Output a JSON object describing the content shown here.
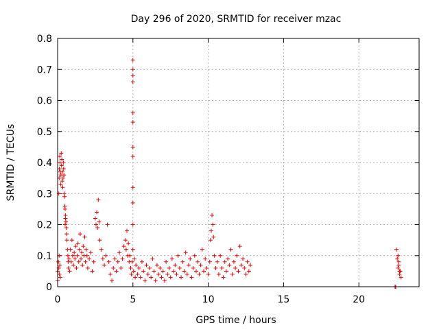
{
  "chart_data": {
    "type": "scatter",
    "title": "Day 296 of 2020, SRMTID for receiver mzac",
    "xlabel": "GPS time / hours",
    "ylabel": "SRMTID / TECUs",
    "xlim": [
      0,
      24
    ],
    "ylim": [
      0,
      0.8
    ],
    "xticks": [
      0,
      5,
      10,
      15,
      20
    ],
    "xtick_labels": [
      "0",
      "5",
      "10",
      "15",
      "20"
    ],
    "yticks": [
      0,
      0.1,
      0.2,
      0.3,
      0.4,
      0.5,
      0.6,
      0.7,
      0.8
    ],
    "ytick_labels": [
      "0",
      "0.1",
      "0.2",
      "0.3",
      "0.4",
      "0.5",
      "0.6",
      "0.7",
      "0.8"
    ],
    "grid": true,
    "marker": "+",
    "color": "#e60000",
    "series": [
      {
        "x": [
          0.0,
          0.02,
          0.05,
          0.08,
          0.1,
          0.12,
          0.15,
          0.18,
          0.08,
          0.1,
          0.12,
          0.14,
          0.16,
          0.18,
          0.2,
          0.22,
          0.24,
          0.26,
          0.28,
          0.3,
          0.32,
          0.34,
          0.36,
          0.38,
          0.4,
          0.42,
          0.44,
          0.46,
          0.48,
          0.5,
          0.52,
          0.5,
          0.52,
          0.55,
          0.58,
          0.6,
          0.62,
          0.65,
          0.68,
          0.7,
          0.72,
          0.75,
          0.8,
          0.85,
          0.9,
          0.95,
          1.0,
          1.05,
          1.1,
          1.15,
          1.2,
          1.25,
          1.3,
          1.35,
          1.4,
          1.45,
          1.5,
          1.55,
          1.6,
          1.65,
          1.7,
          1.75,
          1.8,
          1.85,
          1.9,
          1.95,
          2.0,
          2.1,
          2.2,
          2.3,
          2.4,
          2.5,
          2.55,
          2.6,
          2.65,
          2.7,
          2.75,
          2.8,
          2.9,
          3.0,
          3.1,
          3.2,
          3.3,
          3.4,
          3.5,
          3.6,
          3.7,
          3.8,
          3.9,
          4.0,
          4.1,
          4.2,
          4.3,
          4.4,
          4.5,
          4.55,
          4.6,
          4.65,
          4.7,
          4.75,
          4.8,
          4.85,
          4.9,
          4.95,
          5.0,
          5.0,
          5.0,
          5.0,
          5.0,
          5.0,
          5.0,
          5.0,
          5.0,
          5.0,
          5.0,
          5.0,
          5.05,
          5.1,
          5.15,
          5.2,
          5.3,
          5.4,
          5.5,
          5.6,
          5.7,
          5.8,
          5.9,
          6.0,
          6.1,
          6.2,
          6.3,
          6.4,
          6.5,
          6.6,
          6.7,
          6.8,
          6.9,
          7.0,
          7.1,
          7.2,
          7.3,
          7.4,
          7.5,
          7.6,
          7.7,
          7.8,
          7.9,
          8.0,
          8.1,
          8.2,
          8.3,
          8.4,
          8.5,
          8.6,
          8.7,
          8.8,
          8.9,
          9.0,
          9.1,
          9.2,
          9.3,
          9.4,
          9.5,
          9.6,
          9.7,
          9.8,
          9.9,
          10.0,
          10.1,
          10.15,
          10.2,
          10.25,
          10.3,
          10.35,
          10.4,
          10.5,
          10.6,
          10.7,
          10.8,
          10.9,
          11.0,
          11.1,
          11.2,
          11.3,
          11.4,
          11.5,
          11.6,
          11.7,
          11.8,
          11.9,
          12.0,
          12.1,
          12.2,
          12.3,
          12.4,
          12.5,
          12.6,
          12.7,
          12.8,
          22.4,
          22.45,
          22.5,
          22.55,
          22.6,
          22.65,
          22.7,
          22.75,
          22.8,
          22.6,
          22.65,
          22.7
        ],
        "y": [
          0.02,
          0.05,
          0.08,
          0.06,
          0.1,
          0.04,
          0.07,
          0.03,
          0.3,
          0.35,
          0.38,
          0.42,
          0.4,
          0.37,
          0.33,
          0.36,
          0.43,
          0.39,
          0.41,
          0.34,
          0.37,
          0.32,
          0.35,
          0.4,
          0.38,
          0.36,
          0.3,
          0.29,
          0.26,
          0.25,
          0.22,
          0.2,
          0.23,
          0.21,
          0.19,
          0.17,
          0.15,
          0.12,
          0.1,
          0.08,
          0.06,
          0.09,
          0.05,
          0.12,
          0.08,
          0.15,
          0.1,
          0.07,
          0.11,
          0.09,
          0.13,
          0.06,
          0.1,
          0.14,
          0.08,
          0.12,
          0.17,
          0.09,
          0.11,
          0.07,
          0.13,
          0.1,
          0.16,
          0.08,
          0.12,
          0.1,
          0.06,
          0.09,
          0.11,
          0.05,
          0.08,
          0.22,
          0.2,
          0.24,
          0.19,
          0.28,
          0.21,
          0.15,
          0.12,
          0.09,
          0.07,
          0.1,
          0.2,
          0.08,
          0.04,
          0.02,
          0.06,
          0.09,
          0.05,
          0.08,
          0.11,
          0.06,
          0.09,
          0.13,
          0.15,
          0.12,
          0.18,
          0.1,
          0.14,
          0.08,
          0.1,
          0.06,
          0.04,
          0.08,
          0.73,
          0.7,
          0.68,
          0.66,
          0.56,
          0.53,
          0.45,
          0.42,
          0.32,
          0.27,
          0.2,
          0.12,
          0.05,
          0.09,
          0.03,
          0.07,
          0.04,
          0.06,
          0.03,
          0.08,
          0.05,
          0.02,
          0.07,
          0.04,
          0.06,
          0.03,
          0.09,
          0.05,
          0.02,
          0.07,
          0.04,
          0.06,
          0.03,
          0.05,
          0.02,
          0.08,
          0.04,
          0.06,
          0.03,
          0.09,
          0.05,
          0.07,
          0.04,
          0.1,
          0.06,
          0.03,
          0.08,
          0.05,
          0.11,
          0.04,
          0.07,
          0.09,
          0.03,
          0.06,
          0.1,
          0.05,
          0.08,
          0.04,
          0.07,
          0.12,
          0.05,
          0.09,
          0.06,
          0.04,
          0.08,
          0.15,
          0.18,
          0.23,
          0.2,
          0.16,
          0.1,
          0.06,
          0.08,
          0.04,
          0.1,
          0.06,
          0.03,
          0.08,
          0.05,
          0.09,
          0.07,
          0.12,
          0.04,
          0.08,
          0.06,
          0.1,
          0.05,
          0.13,
          0.07,
          0.09,
          0.06,
          0.04,
          0.08,
          0.05,
          0.07,
          0.0,
          0.0,
          0.12,
          0.09,
          0.06,
          0.08,
          0.04,
          0.05,
          0.03,
          0.1,
          0.07,
          0.05
        ]
      }
    ]
  }
}
